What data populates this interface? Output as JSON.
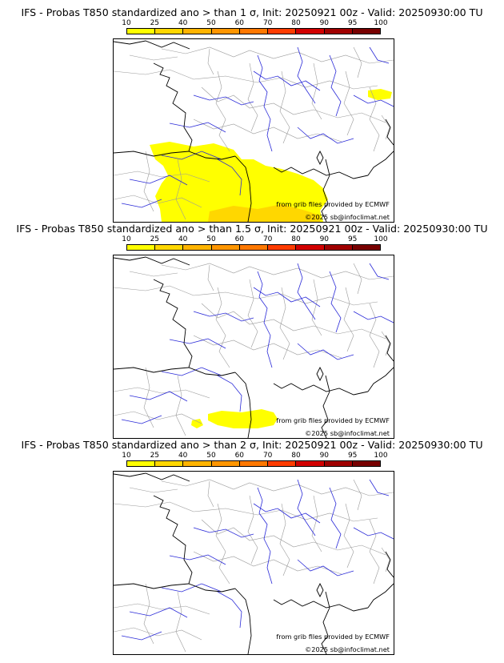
{
  "colorbar": {
    "ticks": [
      "10",
      "25",
      "40",
      "50",
      "60",
      "70",
      "80",
      "90",
      "95",
      "100"
    ],
    "colors": [
      "#ffff00",
      "#ffd700",
      "#ffb400",
      "#ff9600",
      "#ff7800",
      "#ff3c00",
      "#d20000",
      "#a00000",
      "#780000"
    ]
  },
  "panels": [
    {
      "title": "IFS - Probas T850  standardized ano > than 1 σ, Init: 20250921 00z - Valid: 20250930:00 TU",
      "credit_source": "from grib files provided by ECMWF",
      "credit_copyright": "©2025 sb@infoclimat.net",
      "probability_areas": [
        {
          "name": "Southern France / Spain",
          "level": "10-25%"
        },
        {
          "name": "Western Mediterranean",
          "level": "25-40%"
        },
        {
          "name": "Northeast corner",
          "level": "10-25%"
        }
      ]
    },
    {
      "title": "IFS - Probas T850  standardized ano > than 1.5 σ, Init: 20250921 00z - Valid: 20250930:00 TU",
      "credit_source": "from grib files provided by ECMWF",
      "credit_copyright": "©2025 sb@infoclimat.net",
      "probability_areas": [
        {
          "name": "Gulf of Lion / Balearic Sea",
          "level": "10-25%"
        }
      ]
    },
    {
      "title": "IFS - Probas T850  standardized ano > than 2 σ, Init: 20250921 00z - Valid: 20250930:00 TU",
      "credit_source": "from grib files provided by ECMWF",
      "credit_copyright": "©2025 sb@infoclimat.net",
      "probability_areas": []
    }
  ]
}
